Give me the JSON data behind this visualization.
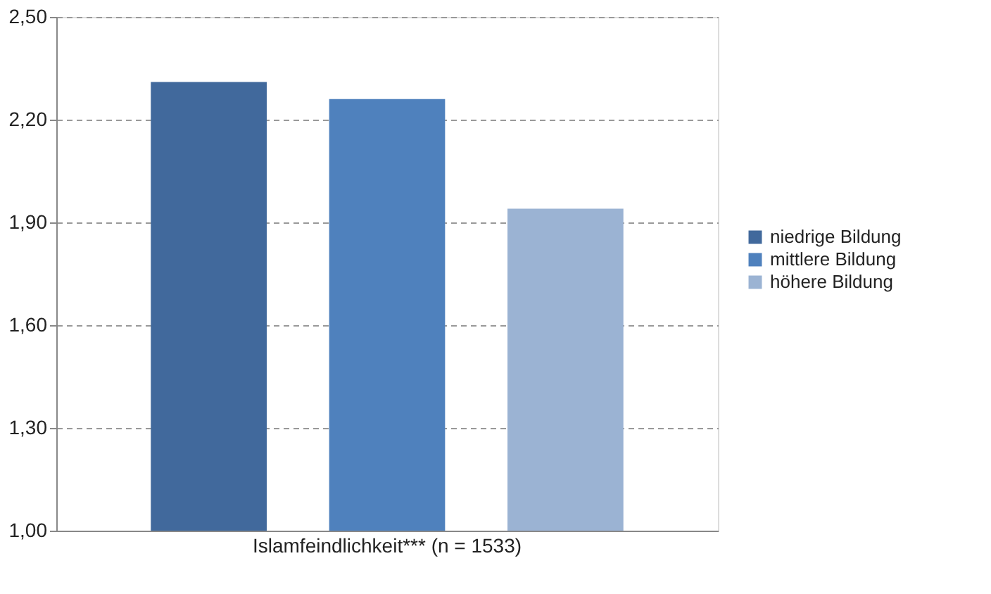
{
  "chart_data": {
    "type": "bar",
    "categories": [
      "Islamfeindlichkeit*** (n = 1533)"
    ],
    "series": [
      {
        "name": "niedrige Bildung",
        "color": "#41699c",
        "values": [
          2.31
        ]
      },
      {
        "name": "mittlere Bildung",
        "color": "#4f81bd",
        "values": [
          2.26
        ]
      },
      {
        "name": "höhere Bildung",
        "color": "#9bb3d3",
        "values": [
          1.94
        ]
      }
    ],
    "ylim": [
      1.0,
      2.5
    ],
    "yticks": [
      {
        "value": 1.0,
        "label": "1,00"
      },
      {
        "value": 1.3,
        "label": "1,30"
      },
      {
        "value": 1.6,
        "label": "1,60"
      },
      {
        "value": 1.9,
        "label": "1,90"
      },
      {
        "value": 2.2,
        "label": "2,20"
      },
      {
        "value": 2.5,
        "label": "2,50"
      }
    ],
    "grid": "y",
    "legend": "right"
  }
}
